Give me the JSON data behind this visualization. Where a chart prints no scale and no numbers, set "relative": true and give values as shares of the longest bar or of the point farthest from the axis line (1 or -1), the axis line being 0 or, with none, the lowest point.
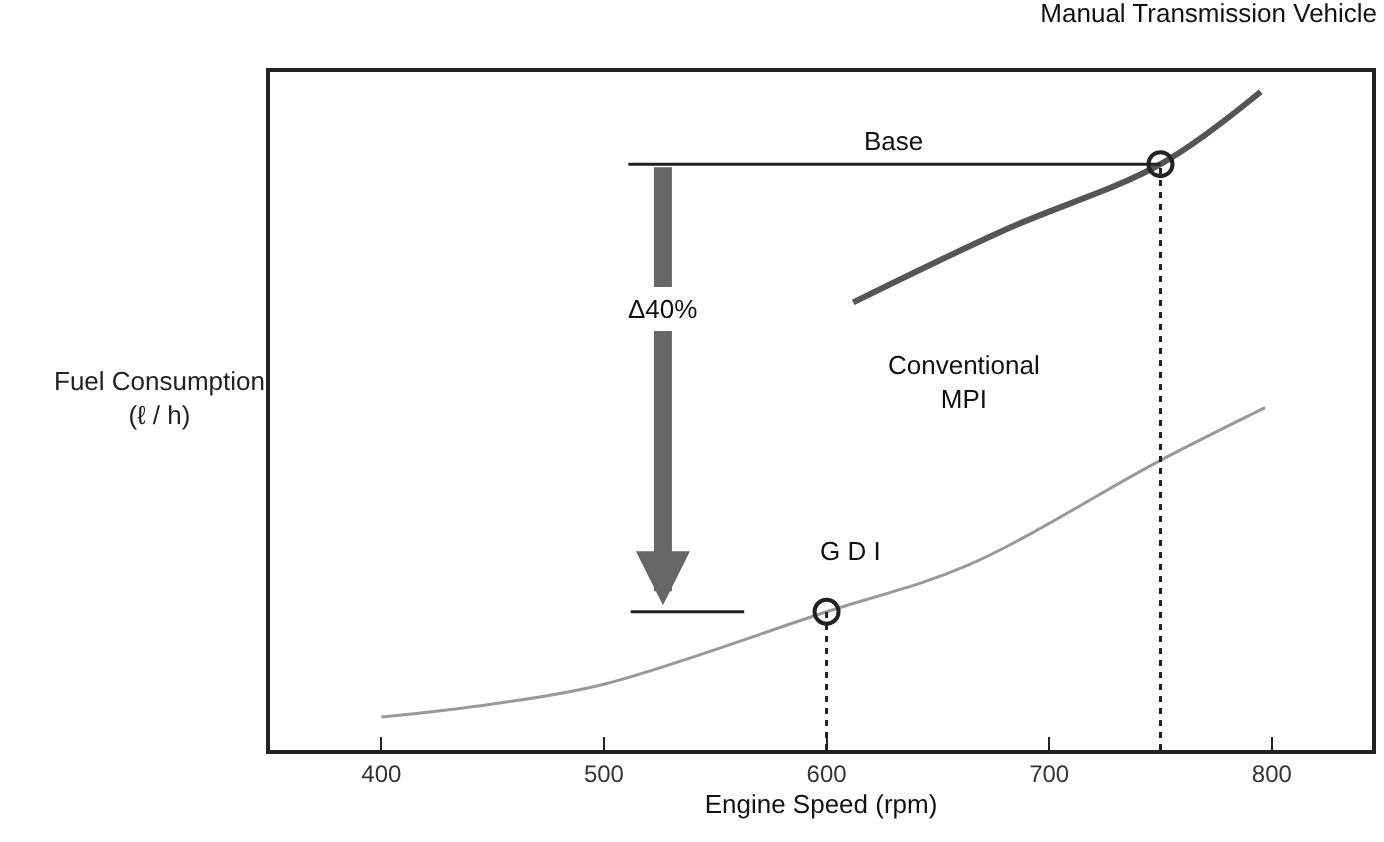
{
  "chart_data": {
    "type": "line",
    "title": "Manual Transmission Vehicle",
    "xlabel": "Engine Speed (rpm)",
    "ylabel": "Fuel Consumption\n(ℓ / h)",
    "relative": true,
    "legend": false,
    "xlim": [
      350,
      845
    ],
    "xticks": [
      400,
      500,
      600,
      700,
      800
    ],
    "series": [
      {
        "name": "Conventional\nMPI",
        "color": "#555555",
        "x": [
          612,
          680,
          750,
          795
        ],
        "values": [
          0.68,
          0.79,
          0.89,
          1.0
        ]
      },
      {
        "name": "G D I",
        "color": "#999999",
        "x": [
          400,
          450,
          500,
          600,
          663,
          750,
          797
        ],
        "values": [
          0.05,
          0.07,
          0.1,
          0.21,
          0.28,
          0.44,
          0.52
        ]
      },
      {
        "type": "scatter",
        "marker": "circle",
        "color": "#222222",
        "x": [
          600,
          750
        ],
        "values": [
          0.21,
          0.89
        ]
      },
      {
        "color": "#222222",
        "line_style": "dotted",
        "x": [
          600,
          600
        ],
        "values": [
          0,
          0.21
        ]
      },
      {
        "color": "#222222",
        "line_style": "dotted",
        "x": [
          750,
          750
        ],
        "values": [
          0,
          0.89
        ]
      },
      {
        "name": "Base",
        "color": "#222222",
        "x": [
          511,
          750
        ],
        "values": [
          0.89,
          0.89
        ]
      },
      {
        "color": "#222222",
        "x": [
          512,
          563
        ],
        "values": [
          0.21,
          0.21
        ]
      }
    ],
    "annotations": [
      "Δ40%"
    ]
  }
}
